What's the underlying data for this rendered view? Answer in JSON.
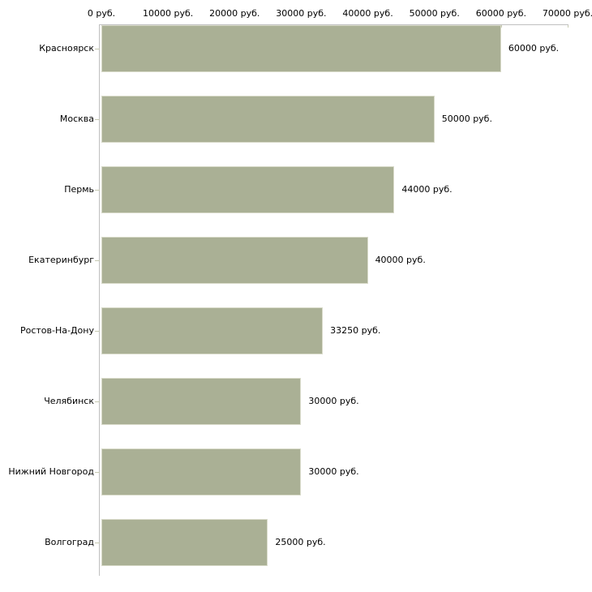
{
  "chart_data": {
    "type": "bar",
    "orientation": "horizontal",
    "title": "",
    "xlabel": "",
    "ylabel": "",
    "unit": "руб.",
    "categories": [
      "Красноярск",
      "Москва",
      "Пермь",
      "Екатеринбург",
      "Ростов-На-Дону",
      "Челябинск",
      "Нижний Новгород",
      "Волгоград"
    ],
    "values": [
      60000,
      50000,
      44000,
      40000,
      33250,
      30000,
      30000,
      25000
    ],
    "value_labels": [
      "60000 руб.",
      "50000 руб.",
      "44000 руб.",
      "40000 руб.",
      "33250 руб.",
      "30000 руб.",
      "30000 руб.",
      "25000 руб."
    ],
    "x_ticks": [
      0,
      10000,
      20000,
      30000,
      40000,
      50000,
      60000,
      70000
    ],
    "x_tick_labels": [
      "0 руб.",
      "10000 руб.",
      "20000 руб.",
      "30000 руб.",
      "40000 руб.",
      "50000 руб.",
      "60000 руб.",
      "70000 руб."
    ],
    "xlim": [
      0,
      70000
    ],
    "grid": false,
    "legend": false,
    "axis_position": "top-left",
    "colors": {
      "bar_fill": "#aab095",
      "bar_border": "#d8dac9",
      "axis_line": "#c0c0c0",
      "tick_mark": "#c6c9b2",
      "text": "#000000",
      "background": "#ffffff"
    }
  }
}
